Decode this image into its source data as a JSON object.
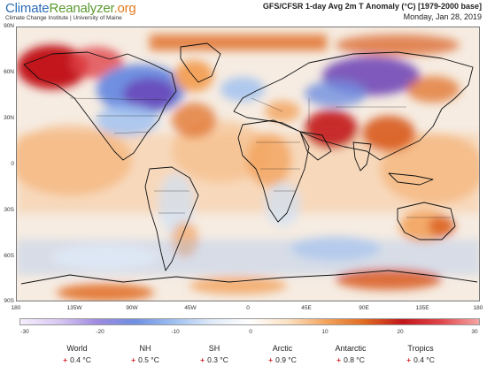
{
  "brand": {
    "part1": "Climate",
    "part2": "Reanalyzer",
    "part3": ".org",
    "subtitle": "Climate Change Institute | University of Maine"
  },
  "title": "GFS/CFSR 1-day Avg 2m T Anomaly (°C) [1979-2000 base]",
  "date": "Monday, Jan 28, 2019",
  "map": {
    "lat_labels": [
      "90N",
      "60N",
      "30N",
      "0",
      "30S",
      "60S",
      "90S"
    ],
    "lon_labels": [
      "180",
      "135W",
      "90W",
      "45W",
      "0",
      "45E",
      "90E",
      "135E",
      "180"
    ],
    "colors": {
      "cold": "#6a3fb5",
      "cool": "#6f8fe0",
      "light_blue": "#cfe0f5",
      "neutral": "#f7f3ee",
      "warm": "#f3a35c",
      "hot": "#d85b1e",
      "very_hot": "#c2161b",
      "land_outline": "#111111",
      "ocean_base": "#f6efe8"
    }
  },
  "colorbar": {
    "labels": [
      "-30",
      "-20",
      "-10",
      "0",
      "10",
      "20",
      "30"
    ],
    "stops": [
      "#f5eefc",
      "#d9c7f2",
      "#9f8be0",
      "#6f8fe0",
      "#9dbff0",
      "#dfeaf8",
      "#ffffff",
      "#fbe1c2",
      "#f3a35c",
      "#e06a20",
      "#c2161b",
      "#e0454a",
      "#f5a5a5"
    ]
  },
  "stats": [
    {
      "name": "World",
      "value": "0.4 °C",
      "sign": "+"
    },
    {
      "name": "NH",
      "value": "0.5 °C",
      "sign": "+"
    },
    {
      "name": "SH",
      "value": "0.3 °C",
      "sign": "+"
    },
    {
      "name": "Arctic",
      "value": "0.9 °C",
      "sign": "+"
    },
    {
      "name": "Antarctic",
      "value": "0.8 °C",
      "sign": "+"
    },
    {
      "name": "Tropics",
      "value": "0.4 °C",
      "sign": "+"
    }
  ]
}
